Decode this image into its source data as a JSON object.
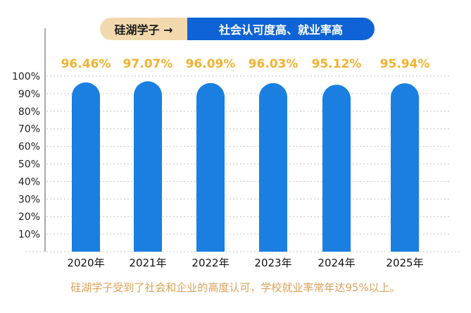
{
  "header": {
    "left_label": "硅湖学子 →",
    "right_label": "社会认可度高、就业率高"
  },
  "caption": "硅湖学子受到了社会和企业的高度认可，学校就业率常年达95%以上。",
  "colors": {
    "bar": "#1a7fe0",
    "value_label": "#f2b230",
    "badge_left": "#f2d9ad",
    "badge_right": "#0f63d6",
    "caption": "#d9a25a"
  },
  "chart_data": {
    "type": "bar",
    "categories": [
      "2020年",
      "2021年",
      "2022年",
      "2023年",
      "2024年",
      "2025年"
    ],
    "values": [
      96.46,
      97.07,
      96.09,
      96.03,
      95.12,
      95.94
    ],
    "value_labels": [
      "96.46%",
      "97.07%",
      "96.09%",
      "96.03%",
      "95.12%",
      "95.94%"
    ],
    "yticks": [
      "10%",
      "20%",
      "30%",
      "40%",
      "50%",
      "60%",
      "70%",
      "80%",
      "90%",
      "100%"
    ],
    "ylim": [
      0,
      100
    ],
    "grid": true,
    "legend": "none"
  }
}
